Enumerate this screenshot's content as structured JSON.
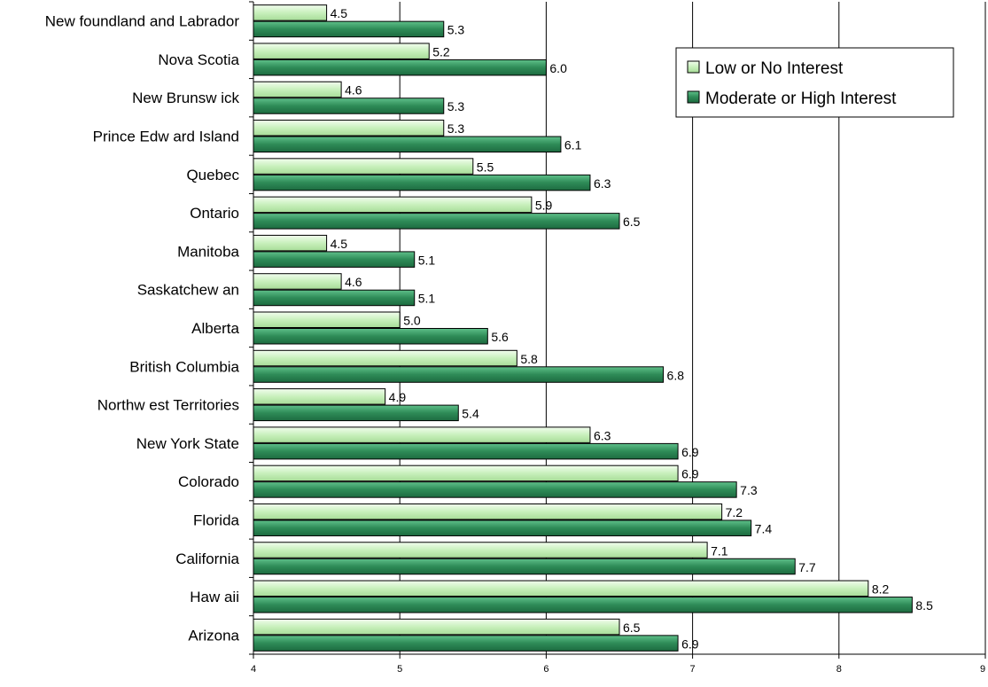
{
  "chart_data": {
    "type": "bar",
    "orientation": "horizontal",
    "categories": [
      "New foundland and Labrador",
      "Nova Scotia",
      "New Brunsw ick",
      "Prince Edw ard Island",
      "Quebec",
      "Ontario",
      "Manitoba",
      "Saskatchew an",
      "Alberta",
      "British Columbia",
      "Northw est Territories",
      "New York State",
      "Colorado",
      "Florida",
      "California",
      "Haw aii",
      "Arizona"
    ],
    "series": [
      {
        "name": "Low or No Interest",
        "color": "#d2f5c8",
        "values": [
          4.5,
          5.2,
          4.6,
          5.3,
          5.5,
          5.9,
          4.5,
          4.6,
          5.0,
          5.8,
          4.9,
          6.3,
          6.9,
          7.2,
          7.1,
          8.2,
          6.5
        ],
        "labels": [
          "4.5",
          "5.2",
          "4.6",
          "5.3",
          "5.5",
          "5.9",
          "4.5",
          "4.6",
          "5.0",
          "5.8",
          "4.9",
          "6.3",
          "6.9",
          "7.2",
          "7.1",
          "8.2",
          "6.5"
        ]
      },
      {
        "name": "Moderate or High Interest",
        "color": "#2e8b57",
        "values": [
          5.3,
          6.0,
          5.3,
          6.1,
          6.3,
          6.5,
          5.1,
          5.1,
          5.6,
          6.8,
          5.4,
          6.9,
          7.3,
          7.4,
          7.7,
          8.5,
          6.9
        ],
        "labels": [
          "5.3",
          "6.0",
          "5.3",
          "6.1",
          "6.3",
          "6.5",
          "5.1",
          "5.1",
          "5.6",
          "6.8",
          "5.4",
          "6.9",
          "7.3",
          "7.4",
          "7.7",
          "8.5",
          "6.9"
        ]
      }
    ],
    "xlim": [
      4,
      9
    ],
    "xticks": [
      "4",
      "5",
      "6",
      "7",
      "8",
      "9"
    ],
    "grid": "vertical",
    "legend_position": "top-right",
    "title": "",
    "xlabel": "",
    "ylabel": ""
  }
}
